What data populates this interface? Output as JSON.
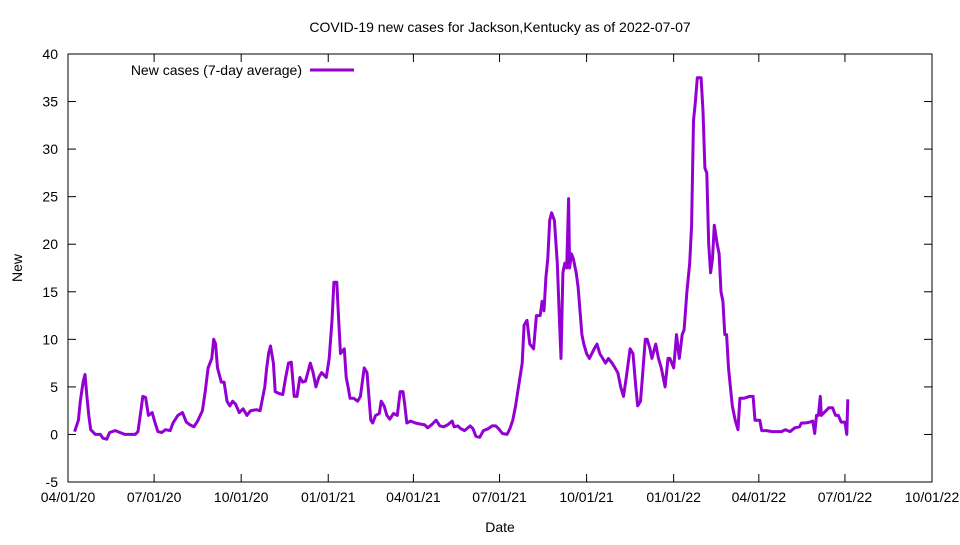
{
  "chart_data": {
    "type": "line",
    "title": "COVID-19 new cases for Jackson,Kentucky as of 2022-07-07",
    "xlabel": "Date",
    "ylabel": "New",
    "ylim": [
      -5,
      40
    ],
    "yticks": [
      -5,
      0,
      5,
      10,
      15,
      20,
      25,
      30,
      35,
      40
    ],
    "x_unit": "days since 04/01/20",
    "xlim": [
      0,
      913
    ],
    "xticks": [
      {
        "day": 0,
        "label": "04/01/20"
      },
      {
        "day": 91,
        "label": "07/01/20"
      },
      {
        "day": 183,
        "label": "10/01/20"
      },
      {
        "day": 275,
        "label": "01/01/21"
      },
      {
        "day": 365,
        "label": "04/01/21"
      },
      {
        "day": 456,
        "label": "07/01/21"
      },
      {
        "day": 548,
        "label": "10/01/21"
      },
      {
        "day": 640,
        "label": "01/01/22"
      },
      {
        "day": 730,
        "label": "04/01/22"
      },
      {
        "day": 821,
        "label": "07/01/22"
      },
      {
        "day": 913,
        "label": "10/01/22"
      }
    ],
    "legend": {
      "position": "top-left"
    },
    "grid": false,
    "series": [
      {
        "name": "New cases (7-day average)",
        "color": "#9400d3",
        "x": [
          7,
          11,
          13,
          16,
          18,
          20,
          22,
          24,
          29,
          34,
          37,
          41,
          44,
          50,
          55,
          60,
          71,
          74,
          77,
          79,
          82,
          85,
          89,
          92,
          95,
          99,
          103,
          108,
          111,
          116,
          121,
          125,
          129,
          133,
          137,
          142,
          145,
          148,
          152,
          154,
          156,
          158,
          162,
          165,
          168,
          171,
          174,
          177,
          181,
          185,
          189,
          193,
          199,
          203,
          206,
          208,
          210,
          212,
          214,
          217,
          219,
          223,
          227,
          230,
          233,
          236,
          239,
          242,
          245,
          248,
          251,
          256,
          259,
          262,
          265,
          268,
          273,
          276,
          279,
          281,
          284,
          286,
          288,
          292,
          294,
          296,
          298,
          302,
          306,
          309,
          313,
          316,
          318,
          320,
          322,
          325,
          329,
          331,
          334,
          337,
          340,
          344,
          348,
          351,
          354,
          356,
          358,
          362,
          367,
          372,
          377,
          380,
          384,
          389,
          393,
          397,
          401,
          406,
          408,
          412,
          415,
          419,
          425,
          428,
          431,
          435,
          439,
          444,
          448,
          452,
          455,
          459,
          464,
          467,
          470,
          473,
          476,
          480,
          482,
          485,
          488,
          492,
          495,
          499,
          501,
          503,
          505,
          507,
          509,
          511,
          514,
          517,
          519,
          521,
          523,
          525,
          527,
          529,
          530,
          532,
          534,
          537,
          539,
          541,
          543,
          545,
          548,
          551,
          556,
          559,
          562,
          565,
          568,
          571,
          575,
          578,
          581,
          584,
          587,
          590,
          594,
          597,
          600,
          602,
          605,
          607,
          610,
          612,
          615,
          617,
          621,
          624,
          627,
          631,
          634,
          636,
          640,
          643,
          646,
          649,
          651,
          654,
          657,
          659,
          661,
          663,
          665,
          669,
          671,
          673,
          675,
          677,
          679,
          681,
          683,
          686,
          688,
          690,
          692,
          694,
          696,
          698,
          700,
          702,
          705,
          708,
          710,
          714,
          717,
          720,
          724,
          726,
          731,
          733,
          738,
          744,
          749,
          754,
          758,
          763,
          768,
          773,
          775,
          779,
          784,
          787,
          789,
          791,
          793,
          795,
          796,
          801,
          804,
          808,
          811,
          814,
          817,
          821,
          823,
          824
        ],
        "values": [
          0.3,
          1.5,
          3.5,
          5.5,
          6.3,
          4,
          2,
          0.5,
          0,
          0,
          -0.4,
          -0.5,
          0.2,
          0.4,
          0.2,
          0,
          0,
          0.3,
          2.5,
          4,
          3.9,
          2,
          2.3,
          1.2,
          0.3,
          0.2,
          0.5,
          0.4,
          1.2,
          2,
          2.3,
          1.3,
          1,
          0.8,
          1.4,
          2.5,
          4.5,
          7,
          8,
          10,
          9.5,
          7,
          5.5,
          5.5,
          3.5,
          3,
          3.5,
          3.2,
          2.3,
          2.7,
          2,
          2.5,
          2.6,
          2.5,
          4,
          5,
          7,
          8.5,
          9.3,
          7.5,
          4.5,
          4.3,
          4.2,
          6,
          7.5,
          7.6,
          4,
          4,
          6,
          5.5,
          5.6,
          7.5,
          6.5,
          5,
          6,
          6.5,
          6,
          8,
          12,
          16,
          16,
          12,
          8.5,
          9,
          6,
          5,
          3.8,
          3.8,
          3.5,
          4,
          7,
          6.5,
          4,
          1.5,
          1.2,
          2,
          2.2,
          3.5,
          3,
          2,
          1.6,
          2.2,
          2,
          4.5,
          4.5,
          3,
          1.2,
          1.4,
          1.2,
          1.1,
          1,
          0.7,
          1,
          1.5,
          0.9,
          0.8,
          1,
          1.4,
          0.8,
          0.9,
          0.6,
          0.4,
          0.9,
          0.6,
          -0.2,
          -0.3,
          0.4,
          0.6,
          0.9,
          0.9,
          0.6,
          0.1,
          0,
          0.6,
          1.5,
          3,
          5,
          7.5,
          11.5,
          12,
          9.5,
          9,
          12.5,
          12.5,
          14,
          13,
          16.5,
          18.5,
          22.5,
          23.3,
          22.5,
          18,
          13,
          8,
          17,
          18,
          17.5,
          24.8,
          17.5,
          19,
          18.5,
          17,
          15.5,
          13,
          10.5,
          9.5,
          8.5,
          8,
          9,
          9.5,
          8.5,
          8,
          7.5,
          8,
          7.5,
          7,
          6.5,
          5,
          4,
          6,
          9,
          8.5,
          5,
          3,
          3.5,
          6,
          10,
          10,
          9,
          8,
          9.5,
          8,
          7,
          5,
          8,
          8,
          7,
          10.5,
          8,
          10.5,
          11,
          15,
          18,
          22,
          33,
          35,
          37.5,
          37.5,
          34,
          28,
          27.5,
          20,
          17,
          18.5,
          22,
          20,
          19,
          15,
          14,
          10.5,
          10.5,
          7,
          5,
          3,
          1.5,
          0.5,
          3.8,
          3.8,
          3.9,
          4,
          4,
          1.5,
          1.5,
          0.4,
          0.4,
          0.3,
          0.3,
          0.3,
          0.5,
          0.3,
          0.7,
          0.8,
          1.2,
          1.2,
          1.3,
          1.4,
          0.1,
          2,
          2,
          4,
          2,
          2.5,
          2.8,
          2.8,
          2,
          2,
          1.3,
          1.3,
          0,
          3.7
        ]
      }
    ]
  }
}
